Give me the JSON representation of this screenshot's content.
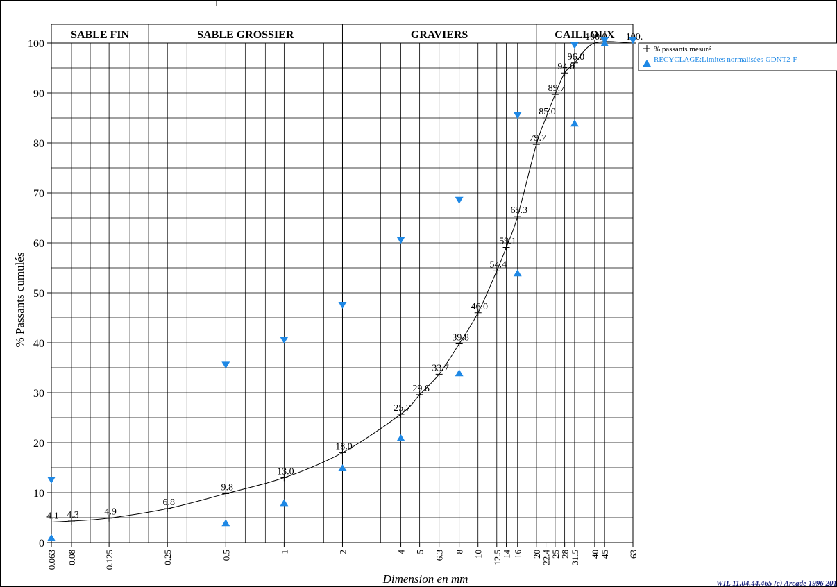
{
  "chart_data": {
    "type": "line",
    "xscale": "log",
    "ylabel": "% Passants cumulés",
    "xlabel": "Dimension en mm",
    "ylim": [
      0,
      100
    ],
    "xlim": [
      0.063,
      63
    ],
    "grid": true,
    "legend_position": "top-right",
    "yticks": [
      0,
      10,
      20,
      30,
      40,
      50,
      60,
      70,
      80,
      90,
      100
    ],
    "xticks": [
      "0.063",
      "0.08",
      "0.125",
      "0.25",
      "0.5",
      "1",
      "2",
      "4",
      "5",
      "6.3",
      "8",
      "10",
      "12.5",
      "14",
      "16",
      "20",
      "22.4",
      "25",
      "28",
      "31.5",
      "40",
      "45",
      "63"
    ],
    "zones": [
      {
        "label": "SABLE FIN",
        "from": 0.063,
        "to": 0.2
      },
      {
        "label": "SABLE GROSSIER",
        "from": 0.2,
        "to": 2
      },
      {
        "label": "GRAVIERS",
        "from": 2,
        "to": 20
      },
      {
        "label": "CAILLOUX",
        "from": 20,
        "to": 63
      }
    ],
    "series": [
      {
        "name": "% passants mesuré",
        "style": "line-with-plus",
        "color": "#000000",
        "x": [
          0.063,
          0.08,
          0.125,
          0.25,
          0.5,
          1,
          2,
          4,
          5,
          6.3,
          8,
          10,
          12.5,
          14,
          16,
          20,
          22.4,
          25,
          28,
          31.5,
          40,
          63
        ],
        "y": [
          4.1,
          4.3,
          4.9,
          6.8,
          9.8,
          13.0,
          18.0,
          25.7,
          29.6,
          33.7,
          39.8,
          46.0,
          54.4,
          59.1,
          65.3,
          79.7,
          85.0,
          89.7,
          94.0,
          96.0,
          100.0,
          100.0
        ],
        "labels": [
          "4.1",
          "4.3",
          "4.9",
          "6.8",
          "9.8",
          "13.0",
          "18.0",
          "25.7",
          "29.6",
          "33.7",
          "39.8",
          "46.0",
          "54.4",
          "59.1",
          "65.3",
          "79.7",
          "85.0",
          "89.7",
          "94.0",
          "96.0",
          "100.0",
          "100."
        ]
      },
      {
        "name": "RECYCLAGE:Limites normalisées  GDNT2-F",
        "style": "triangles",
        "color": "#1e88e5",
        "upper_x": [
          0.063,
          0.5,
          1,
          2,
          4,
          8,
          16,
          31.5,
          45,
          63
        ],
        "upper_y": [
          12.5,
          35.5,
          40.5,
          47.5,
          60.5,
          68.5,
          85.5,
          99.5,
          100.5,
          100.5
        ],
        "lower_x": [
          0.063,
          0.5,
          1,
          2,
          4,
          8,
          16,
          31.5,
          45
        ],
        "lower_y": [
          1,
          4,
          8,
          15,
          21,
          34,
          54,
          84,
          100
        ]
      }
    ],
    "legend": {
      "entries": [
        "% passants mesuré",
        "RECYCLAGE:Limites normalisées  GDNT2-F"
      ]
    },
    "footer": "WIL 11.04.44.465 (c) Arcade 1996 201"
  }
}
